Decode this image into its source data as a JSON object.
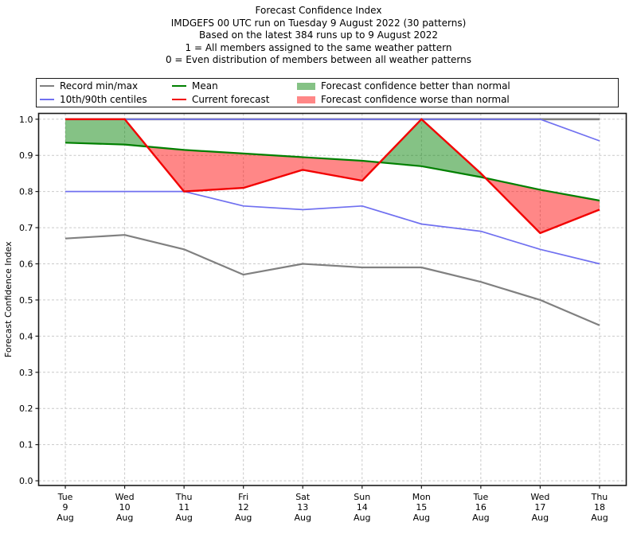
{
  "header": {
    "lines": [
      "Forecast Confidence Index",
      "IMDGEFS 00 UTC run on Tuesday 9 August 2022 (30 patterns)",
      "Based on the latest 384 runs up to 9 August 2022",
      "1 = All members assigned to the same weather pattern",
      "0 = Even distribution of members between all weather patterns"
    ]
  },
  "legend": {
    "items": [
      {
        "swatch": "line",
        "color_key": "gray",
        "label": "Record min/max"
      },
      {
        "swatch": "line",
        "color_key": "green",
        "label": "Mean"
      },
      {
        "swatch": "patch",
        "color_key": "green_fill",
        "label": "Forecast confidence better than normal"
      },
      {
        "swatch": "line",
        "color_key": "blue",
        "label": "10th/90th centiles"
      },
      {
        "swatch": "line",
        "color_key": "red",
        "label": "Current forecast"
      },
      {
        "swatch": "patch",
        "color_key": "red_fill",
        "label": "Forecast confidence worse than normal"
      }
    ]
  },
  "colors": {
    "gray": "#808080",
    "blue": "#7070f0",
    "green": "#008000",
    "red": "#f20000",
    "green_fill": "rgba(0,128,0,0.48)",
    "red_fill": "rgba(255,0,0,0.47)",
    "grid": "#c9c9c9",
    "frame": "#1a1a1a",
    "text": "#000000"
  },
  "chart_data": {
    "type": "line",
    "title": "Forecast Confidence Index",
    "ylabel": "Forecast Confidence Index",
    "xlabel": "",
    "grid": true,
    "legend_position": "top",
    "ylim": [
      -0.013,
      1.016
    ],
    "yticks": [
      0.0,
      0.1,
      0.2,
      0.3,
      0.4,
      0.5,
      0.6,
      0.7,
      0.8,
      0.9,
      1.0
    ],
    "categories": [
      [
        "Tue",
        "9",
        "Aug"
      ],
      [
        "Wed",
        "10",
        "Aug"
      ],
      [
        "Thu",
        "11",
        "Aug"
      ],
      [
        "Fri",
        "12",
        "Aug"
      ],
      [
        "Sat",
        "13",
        "Aug"
      ],
      [
        "Sun",
        "14",
        "Aug"
      ],
      [
        "Mon",
        "15",
        "Aug"
      ],
      [
        "Tue",
        "16",
        "Aug"
      ],
      [
        "Wed",
        "17",
        "Aug"
      ],
      [
        "Thu",
        "18",
        "Aug"
      ]
    ],
    "series": [
      {
        "name": "Record max",
        "color_key": "gray",
        "width": 2.6,
        "values": [
          1.0,
          1.0,
          1.0,
          1.0,
          1.0,
          1.0,
          1.0,
          1.0,
          1.0,
          1.0
        ]
      },
      {
        "name": "Record min",
        "color_key": "gray",
        "width": 2.2,
        "values": [
          0.67,
          0.68,
          0.64,
          0.57,
          0.6,
          0.59,
          0.59,
          0.55,
          0.5,
          0.43
        ]
      },
      {
        "name": "90th centile",
        "color_key": "blue",
        "width": 1.7,
        "values": [
          1.0,
          1.0,
          1.0,
          1.0,
          1.0,
          1.0,
          1.0,
          1.0,
          1.0,
          0.94
        ]
      },
      {
        "name": "10th centile",
        "color_key": "blue",
        "width": 1.7,
        "values": [
          0.8,
          0.8,
          0.8,
          0.76,
          0.75,
          0.76,
          0.71,
          0.69,
          0.64,
          0.6
        ]
      },
      {
        "name": "Mean",
        "color_key": "green",
        "width": 2.2,
        "values": [
          0.935,
          0.93,
          0.915,
          0.905,
          0.895,
          0.885,
          0.87,
          0.84,
          0.805,
          0.775
        ]
      },
      {
        "name": "Current forecast",
        "color_key": "red",
        "width": 2.4,
        "values": [
          1.0,
          1.0,
          0.8,
          0.81,
          0.86,
          0.83,
          1.0,
          0.85,
          0.685,
          0.75
        ]
      }
    ],
    "fill_between": {
      "upper": "Current forecast",
      "lower": "Mean",
      "above_color_key": "green_fill",
      "below_color_key": "red_fill"
    }
  }
}
